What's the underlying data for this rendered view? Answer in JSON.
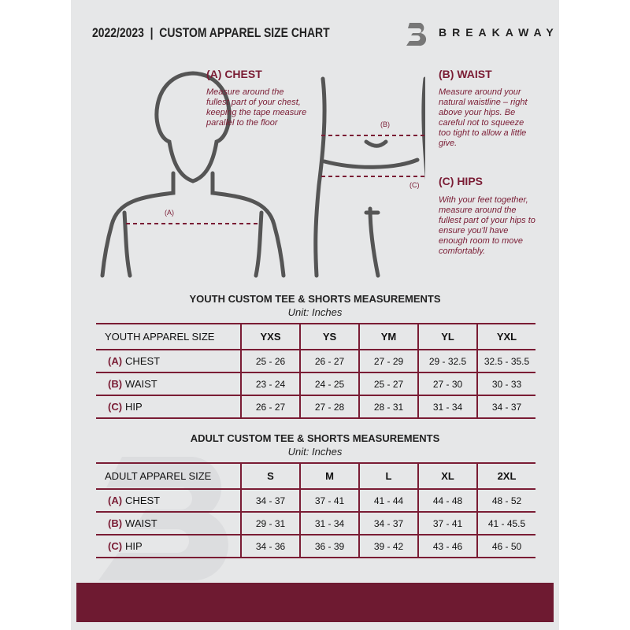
{
  "header": {
    "title": "2022/2023  |  CUSTOM APPAREL SIZE CHART",
    "brand": "BREAKAWAY"
  },
  "measures": {
    "chest": {
      "title": "(A) CHEST",
      "desc": "Measure around the fullest part of your chest, keeping the tape measure parallel to the floor",
      "marker": "(A)"
    },
    "waist": {
      "title": "(B) WAIST",
      "desc": "Measure around your natural waistline – right above your hips. Be careful not to squeeze too tight to allow a little give.",
      "marker": "(B)"
    },
    "hips": {
      "title": "(C) HIPS",
      "desc": "With your feet together, measure around the fullest part of your hips to ensure you'll have enough room to move comfortably.",
      "marker": "(C)"
    }
  },
  "youth": {
    "title": "YOUTH CUSTOM TEE & SHORTS MEASUREMENTS",
    "unit": "Unit: Inches",
    "header": "YOUTH APPAREL SIZE",
    "sizes": [
      "YXS",
      "YS",
      "YM",
      "YL",
      "YXL"
    ],
    "rows": [
      {
        "code": "(A)",
        "label": "CHEST",
        "values": [
          "25 - 26",
          "26 - 27",
          "27 - 29",
          "29 - 32.5",
          "32.5 - 35.5"
        ]
      },
      {
        "code": "(B)",
        "label": "WAIST",
        "values": [
          "23 - 24",
          "24 - 25",
          "25 - 27",
          "27 - 30",
          "30 - 33"
        ]
      },
      {
        "code": "(C)",
        "label": "HIP",
        "values": [
          "26 - 27",
          "27 - 28",
          "28 - 31",
          "31 - 34",
          "34 - 37"
        ]
      }
    ]
  },
  "adult": {
    "title": "ADULT CUSTOM TEE & SHORTS MEASUREMENTS",
    "unit": "Unit: Inches",
    "header": "ADULT APPAREL SIZE",
    "sizes": [
      "S",
      "M",
      "L",
      "XL",
      "2XL"
    ],
    "rows": [
      {
        "code": "(A)",
        "label": "CHEST",
        "values": [
          "34 - 37",
          "37 - 41",
          "41 - 44",
          "44 - 48",
          "48 - 52"
        ]
      },
      {
        "code": "(B)",
        "label": "WAIST",
        "values": [
          "29 - 31",
          "31 - 34",
          "34 - 37",
          "37 - 41",
          "41 - 45.5"
        ]
      },
      {
        "code": "(C)",
        "label": "HIP",
        "values": [
          "34 - 36",
          "36 - 39",
          "39 - 42",
          "43 - 46",
          "46 - 50"
        ]
      }
    ]
  },
  "colors": {
    "accent": "#7a1c34",
    "panel": "#e6e7e8"
  }
}
